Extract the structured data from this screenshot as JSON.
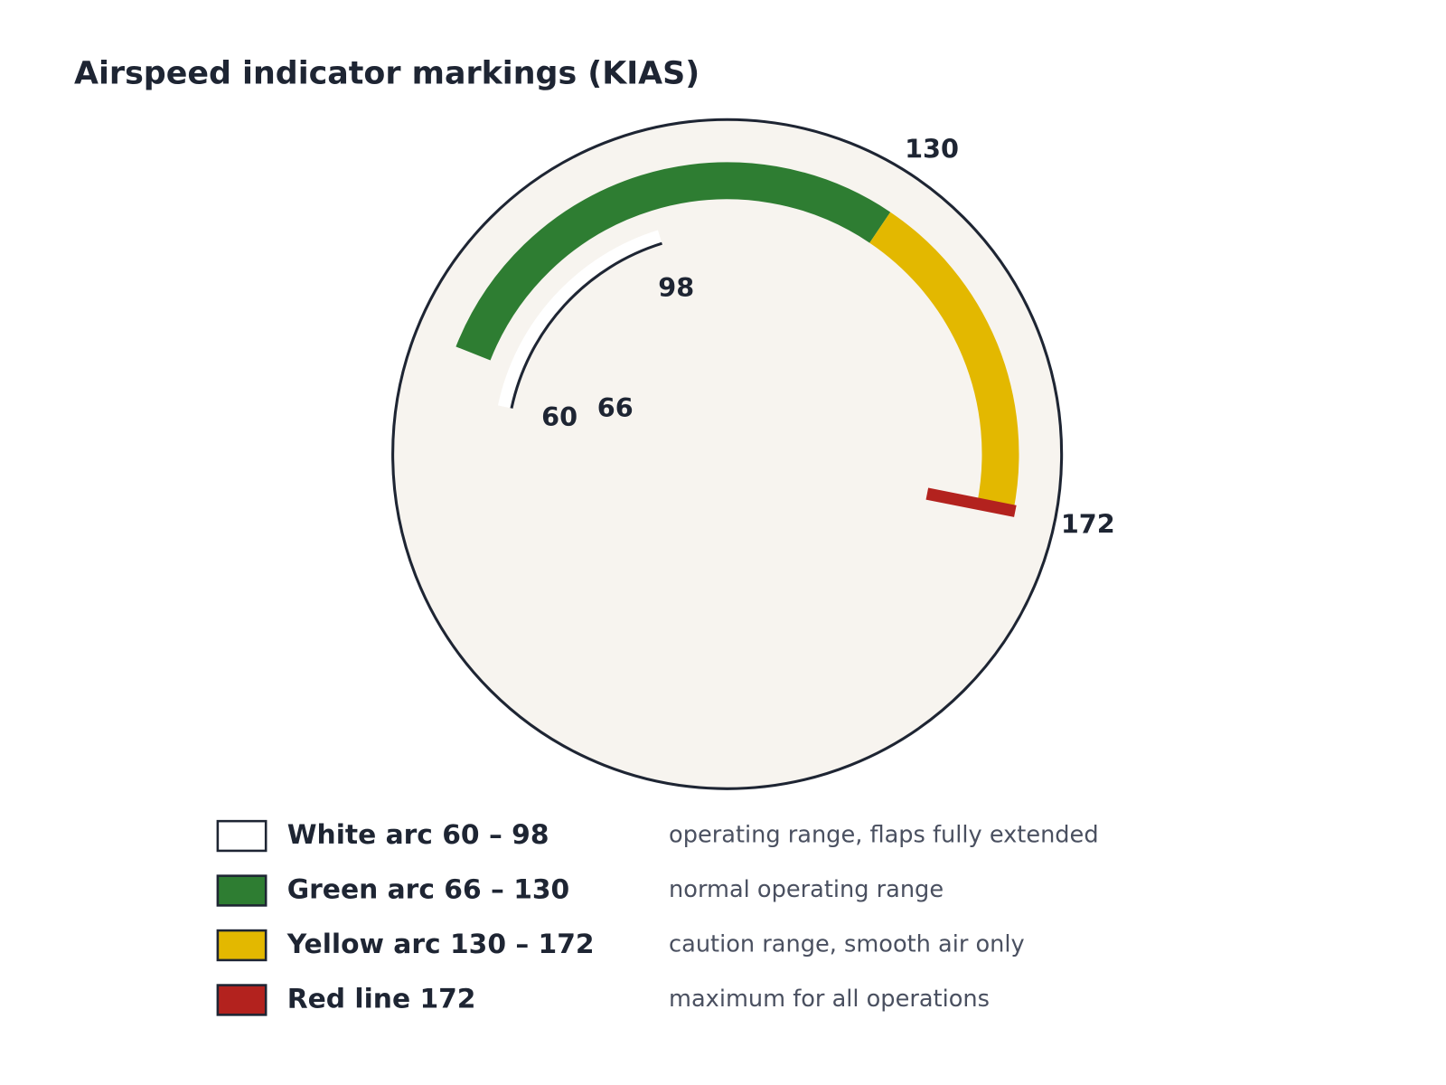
{
  "chart_data": {
    "type": "gauge",
    "title": "Airspeed indicator markings (KIAS)",
    "series": [
      {
        "label": "White arc 60 – 98",
        "description": "operating range, flaps fully extended",
        "color": "#ffffff",
        "values": [
          60,
          98
        ]
      },
      {
        "label": "Green arc 66 – 130",
        "description": "normal operating range",
        "color": "#2e7d32",
        "values": [
          66,
          130
        ]
      },
      {
        "label": "Yellow arc 130 – 172",
        "description": "caution range, smooth air only",
        "color": "#e3b800",
        "values": [
          130,
          172
        ]
      },
      {
        "label": "Red line 172",
        "description": "maximum for all operations",
        "color": "#b3221e",
        "values": [
          172
        ]
      }
    ]
  }
}
